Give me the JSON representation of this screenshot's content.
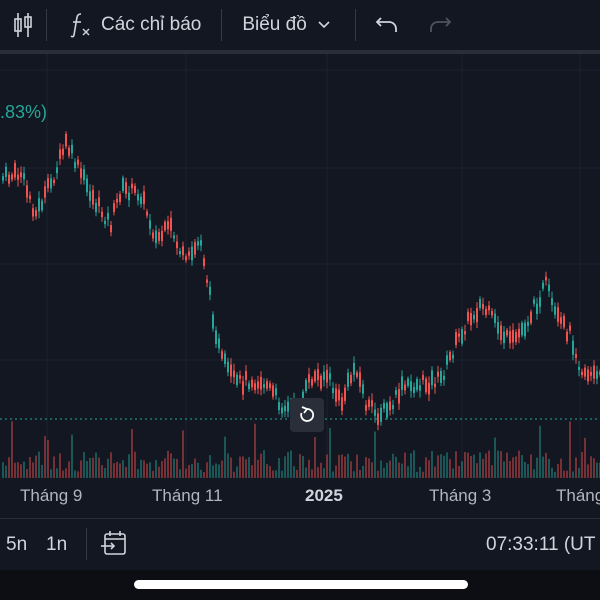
{
  "toolbar": {
    "indicators_label": "Các chỉ báo",
    "chart_type_label": "Biểu đồ"
  },
  "chart": {
    "change_pct": ".83%)",
    "x_axis_labels": [
      "Tháng 9",
      "Tháng 11",
      "2025",
      "Tháng 3",
      "Tháng"
    ]
  },
  "bottom": {
    "range_5y": "5n",
    "range_1y": "1n",
    "clock": "07:33:11 (UT"
  },
  "colors": {
    "up": "#26a69a",
    "down": "#ef5350",
    "background": "#131722"
  },
  "icons": [
    "candlestick-icon",
    "fx-icon",
    "chevron-down-icon",
    "undo-icon",
    "redo-icon",
    "reset-icon",
    "goto-date-icon"
  ]
}
